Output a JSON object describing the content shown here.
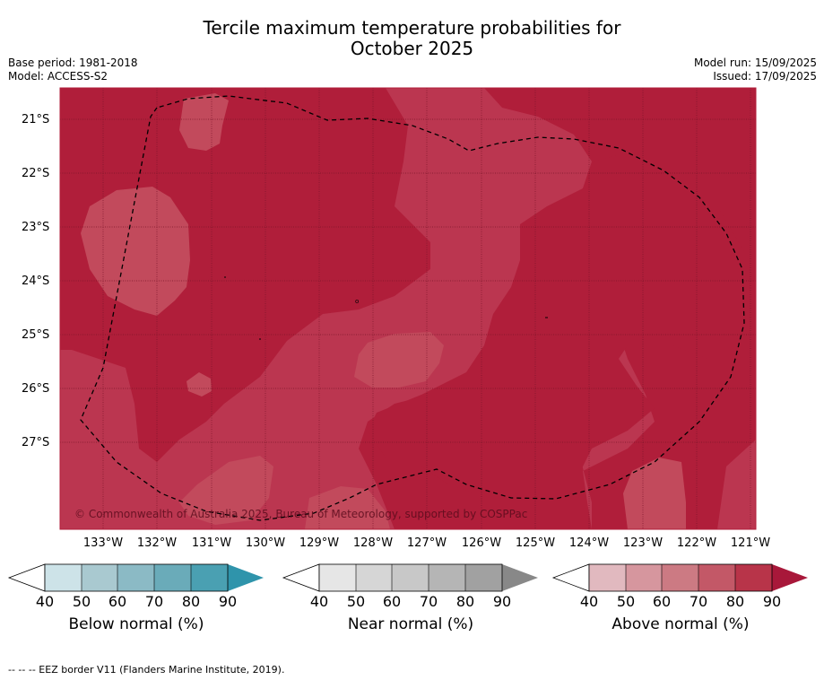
{
  "title_line1": "Tercile maximum temperature probabilities for",
  "title_line2": "October 2025",
  "left_meta": {
    "base_period": "Base period: 1981-2018",
    "model": "Model: ACCESS-S2"
  },
  "right_meta": {
    "model_run": "Model run: 15/09/2025",
    "issued": "Issued: 17/09/2025"
  },
  "map": {
    "latitude_labels": [
      "21°S",
      "22°S",
      "23°S",
      "24°S",
      "25°S",
      "26°S",
      "27°S"
    ],
    "longitude_labels": [
      "133°W",
      "132°W",
      "131°W",
      "130°W",
      "129°W",
      "128°W",
      "127°W",
      "126°W",
      "125°W",
      "124°W",
      "123°W",
      "122°W",
      "121°W"
    ],
    "copyright": "© Commonwealth of Australia 2025, Bureau of Meteorology, supported by COSPPac",
    "colors": {
      "dark": "#b01e3a",
      "medium": "#bb3650",
      "light": "#c24a5c"
    }
  },
  "colorbars": [
    {
      "label": "Below normal (%)",
      "ticks": [
        "40",
        "50",
        "60",
        "70",
        "80",
        "90"
      ],
      "colors": [
        "#cde3e8",
        "#a9c9d0",
        "#8bbac5",
        "#6aabb9",
        "#4aa0b2",
        "#2f94ab"
      ]
    },
    {
      "label": "Near normal (%)",
      "ticks": [
        "40",
        "50",
        "60",
        "70",
        "80",
        "90"
      ],
      "colors": [
        "#e6e6e6",
        "#d6d6d6",
        "#c8c8c8",
        "#b5b5b5",
        "#a1a1a1",
        "#888888"
      ]
    },
    {
      "label": "Above normal (%)",
      "ticks": [
        "40",
        "50",
        "60",
        "70",
        "80",
        "90"
      ],
      "colors": [
        "#e1b9bf",
        "#d6969e",
        "#cc7a83",
        "#c35867",
        "#b83449",
        "#a8183a"
      ]
    }
  ],
  "footer": "--  --  -- EEZ border V11 (Flanders Marine Institute, 2019)."
}
